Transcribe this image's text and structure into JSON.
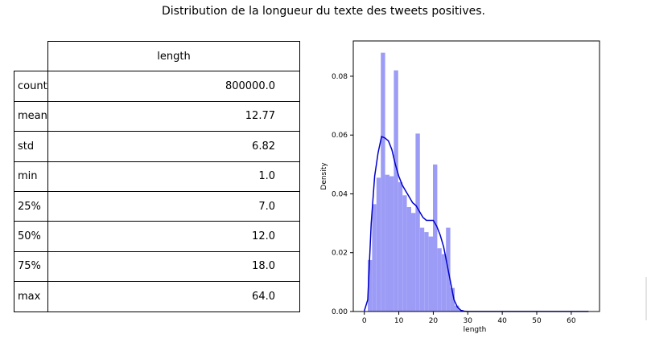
{
  "title": "Distribution de la longueur du texte des tweets positives.",
  "table": {
    "column_header": "length",
    "rows": [
      {
        "label": "count",
        "value": "800000.0"
      },
      {
        "label": "mean",
        "value": "12.77"
      },
      {
        "label": "std",
        "value": "6.82"
      },
      {
        "label": "min",
        "value": "1.0"
      },
      {
        "label": "25%",
        "value": "7.0"
      },
      {
        "label": "50%",
        "value": "12.0"
      },
      {
        "label": "75%",
        "value": "18.0"
      },
      {
        "label": "max",
        "value": "64.0"
      }
    ]
  },
  "chart_data": {
    "type": "bar",
    "xlabel": "length",
    "ylabel": "Density",
    "xlim": [
      -3.2,
      68.2
    ],
    "ylim": [
      0,
      0.092
    ],
    "x_ticks": [
      0,
      10,
      20,
      30,
      40,
      50,
      60
    ],
    "y_ticks": [
      0.0,
      0.02,
      0.04,
      0.06,
      0.08
    ],
    "y_tick_labels": [
      "0.00",
      "0.02",
      "0.04",
      "0.06",
      "0.08"
    ],
    "grid": false,
    "histogram": {
      "bin_edges": [
        1.0,
        2.26,
        3.52,
        4.78,
        6.04,
        7.3,
        8.56,
        9.82,
        11.08,
        12.34,
        13.6,
        14.86,
        16.12,
        17.38,
        18.64,
        19.9,
        21.16,
        22.42,
        23.68,
        24.94,
        26.2,
        27.46,
        28.72
      ],
      "densities": [
        0.0175,
        0.0365,
        0.0455,
        0.088,
        0.0465,
        0.046,
        0.082,
        0.044,
        0.0395,
        0.0355,
        0.0335,
        0.0605,
        0.0285,
        0.027,
        0.0255,
        0.05,
        0.0215,
        0.0195,
        0.0285,
        0.008,
        0.002,
        0.0005
      ],
      "color": "#9c9cf7"
    },
    "kde": {
      "x": [
        0,
        1,
        2,
        3,
        4,
        5,
        6,
        7,
        8,
        9,
        10,
        11,
        12,
        13,
        14,
        15,
        16,
        17,
        18,
        19,
        20,
        21,
        22,
        23,
        24,
        25,
        26,
        27,
        28,
        29,
        30,
        32,
        35,
        40,
        50,
        60,
        65
      ],
      "y": [
        0.0002,
        0.004,
        0.03,
        0.046,
        0.054,
        0.0595,
        0.059,
        0.058,
        0.055,
        0.05,
        0.046,
        0.043,
        0.041,
        0.039,
        0.037,
        0.036,
        0.034,
        0.032,
        0.031,
        0.031,
        0.031,
        0.029,
        0.026,
        0.022,
        0.016,
        0.01,
        0.004,
        0.0015,
        0.0004,
        0.0001,
        0.0,
        0.0,
        0.0,
        0.0,
        0.0,
        0.0,
        0.0
      ],
      "color": "#0000cc"
    }
  }
}
